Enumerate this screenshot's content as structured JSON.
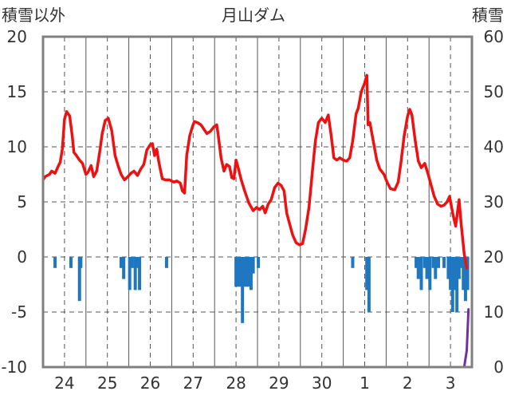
{
  "chart_data": {
    "type": "line",
    "title": "月山ダム",
    "y_left_label": "積雪以外",
    "y_right_label": "積雪",
    "y_left_ticks": [
      "20",
      "15",
      "10",
      "5",
      "0",
      "-5",
      "-10"
    ],
    "y_right_ticks": [
      "60",
      "50",
      "40",
      "30",
      "20",
      "10",
      "0"
    ],
    "y_left_lim": [
      -10,
      20
    ],
    "y_right_lim": [
      0,
      60
    ],
    "x_ticks": [
      {
        "day": 0,
        "label": "24"
      },
      {
        "day": 1,
        "label": "25"
      },
      {
        "day": 2,
        "label": "26"
      },
      {
        "day": 3,
        "label": "27"
      },
      {
        "day": 4,
        "label": "28"
      },
      {
        "day": 5,
        "label": "29"
      },
      {
        "day": 6,
        "label": "30"
      },
      {
        "day": 7,
        "label": "1"
      },
      {
        "day": 8,
        "label": "2"
      },
      {
        "day": 9,
        "label": "3"
      }
    ],
    "x_lim": [
      -0.5,
      9.5
    ],
    "grid": true,
    "colors": {
      "temperature": "#ee1111",
      "precipitation": "#1f77c0",
      "snow": "#7030a0",
      "frame": "#808080",
      "grid": "#555555"
    },
    "series": [
      {
        "type": "line",
        "axis": "left",
        "color": "#ee1111",
        "points": [
          [
            -0.5,
            7.0
          ],
          [
            -0.45,
            7.3
          ],
          [
            -0.35,
            7.5
          ],
          [
            -0.3,
            7.8
          ],
          [
            -0.22,
            7.6
          ],
          [
            -0.15,
            8.2
          ],
          [
            -0.1,
            8.6
          ],
          [
            -0.05,
            9.8
          ],
          [
            0.0,
            12.5
          ],
          [
            0.05,
            13.2
          ],
          [
            0.12,
            12.8
          ],
          [
            0.18,
            11.0
          ],
          [
            0.22,
            9.5
          ],
          [
            0.28,
            9.2
          ],
          [
            0.35,
            8.8
          ],
          [
            0.42,
            8.5
          ],
          [
            0.5,
            7.5
          ],
          [
            0.55,
            7.7
          ],
          [
            0.62,
            8.3
          ],
          [
            0.68,
            7.3
          ],
          [
            0.75,
            7.8
          ],
          [
            0.82,
            9.5
          ],
          [
            0.88,
            11.2
          ],
          [
            0.95,
            12.4
          ],
          [
            1.02,
            12.6
          ],
          [
            1.1,
            11.5
          ],
          [
            1.18,
            9.2
          ],
          [
            1.25,
            8.3
          ],
          [
            1.32,
            7.5
          ],
          [
            1.4,
            7.0
          ],
          [
            1.48,
            7.3
          ],
          [
            1.55,
            7.6
          ],
          [
            1.62,
            7.8
          ],
          [
            1.7,
            7.4
          ],
          [
            1.78,
            8.0
          ],
          [
            1.85,
            8.4
          ],
          [
            1.92,
            9.7
          ],
          [
            2.0,
            10.2
          ],
          [
            2.05,
            10.3
          ],
          [
            2.1,
            9.2
          ],
          [
            2.15,
            9.8
          ],
          [
            2.2,
            8.6
          ],
          [
            2.28,
            7.1
          ],
          [
            2.35,
            7.0
          ],
          [
            2.45,
            7.0
          ],
          [
            2.55,
            6.8
          ],
          [
            2.62,
            6.9
          ],
          [
            2.7,
            6.7
          ],
          [
            2.75,
            6.0
          ],
          [
            2.8,
            5.8
          ],
          [
            2.85,
            9.2
          ],
          [
            2.92,
            11.0
          ],
          [
            2.98,
            11.8
          ],
          [
            3.03,
            12.3
          ],
          [
            3.1,
            12.2
          ],
          [
            3.18,
            12.0
          ],
          [
            3.25,
            11.6
          ],
          [
            3.32,
            11.2
          ],
          [
            3.4,
            11.4
          ],
          [
            3.48,
            11.8
          ],
          [
            3.55,
            12.0
          ],
          [
            3.58,
            11.2
          ],
          [
            3.65,
            9.0
          ],
          [
            3.72,
            7.8
          ],
          [
            3.78,
            8.4
          ],
          [
            3.85,
            8.2
          ],
          [
            3.9,
            7.2
          ],
          [
            3.95,
            7.1
          ],
          [
            4.0,
            8.8
          ],
          [
            4.05,
            8.1
          ],
          [
            4.12,
            7.0
          ],
          [
            4.2,
            6.0
          ],
          [
            4.3,
            4.9
          ],
          [
            4.4,
            4.2
          ],
          [
            4.48,
            4.5
          ],
          [
            4.55,
            4.3
          ],
          [
            4.62,
            4.6
          ],
          [
            4.68,
            4.0
          ],
          [
            4.75,
            4.8
          ],
          [
            4.82,
            5.2
          ],
          [
            4.9,
            6.3
          ],
          [
            4.98,
            6.7
          ],
          [
            5.05,
            6.5
          ],
          [
            5.12,
            6.0
          ],
          [
            5.18,
            4.0
          ],
          [
            5.25,
            3.0
          ],
          [
            5.32,
            2.0
          ],
          [
            5.4,
            1.3
          ],
          [
            5.48,
            1.1
          ],
          [
            5.55,
            1.2
          ],
          [
            5.62,
            2.5
          ],
          [
            5.7,
            4.5
          ],
          [
            5.78,
            7.8
          ],
          [
            5.85,
            10.5
          ],
          [
            5.92,
            12.2
          ],
          [
            6.0,
            12.6
          ],
          [
            6.08,
            12.2
          ],
          [
            6.15,
            12.9
          ],
          [
            6.22,
            11.0
          ],
          [
            6.28,
            9.0
          ],
          [
            6.35,
            8.8
          ],
          [
            6.42,
            9.0
          ],
          [
            6.5,
            8.8
          ],
          [
            6.58,
            8.7
          ],
          [
            6.65,
            9.0
          ],
          [
            6.72,
            10.5
          ],
          [
            6.8,
            13.0
          ],
          [
            6.85,
            13.5
          ],
          [
            6.92,
            15.0
          ],
          [
            7.0,
            15.8
          ],
          [
            7.05,
            16.5
          ],
          [
            7.08,
            12.0
          ],
          [
            7.12,
            12.2
          ],
          [
            7.2,
            10.5
          ],
          [
            7.28,
            8.8
          ],
          [
            7.35,
            8.0
          ],
          [
            7.45,
            7.5
          ],
          [
            7.52,
            6.8
          ],
          [
            7.6,
            6.2
          ],
          [
            7.7,
            6.1
          ],
          [
            7.78,
            6.8
          ],
          [
            7.85,
            8.7
          ],
          [
            7.92,
            11.0
          ],
          [
            8.0,
            12.8
          ],
          [
            8.05,
            13.4
          ],
          [
            8.1,
            12.9
          ],
          [
            8.18,
            10.5
          ],
          [
            8.25,
            8.7
          ],
          [
            8.32,
            8.1
          ],
          [
            8.4,
            8.5
          ],
          [
            8.48,
            7.5
          ],
          [
            8.55,
            6.5
          ],
          [
            8.62,
            5.5
          ],
          [
            8.7,
            4.8
          ],
          [
            8.78,
            4.6
          ],
          [
            8.85,
            4.7
          ],
          [
            8.92,
            5.0
          ],
          [
            8.98,
            5.5
          ],
          [
            9.05,
            4.0
          ],
          [
            9.12,
            2.8
          ],
          [
            9.2,
            5.2
          ],
          [
            9.25,
            3.0
          ],
          [
            9.32,
            0.3
          ],
          [
            9.38,
            -1.0
          ]
        ]
      },
      {
        "type": "bar",
        "axis": "left",
        "color": "#1f77c0",
        "bars": [
          [
            -0.22,
            -1.0
          ],
          [
            0.15,
            -1.0
          ],
          [
            0.35,
            -4.0
          ],
          [
            0.38,
            -1.0
          ],
          [
            1.32,
            -1.0
          ],
          [
            1.38,
            -2.0
          ],
          [
            1.52,
            -3.0
          ],
          [
            1.58,
            -1.0
          ],
          [
            1.65,
            -3.0
          ],
          [
            1.7,
            -1.0
          ],
          [
            1.75,
            -3.0
          ],
          [
            2.38,
            -1.0
          ],
          [
            4.0,
            -2.7
          ],
          [
            4.05,
            -2.7
          ],
          [
            4.1,
            -2.7
          ],
          [
            4.15,
            -6.0
          ],
          [
            4.2,
            -2.7
          ],
          [
            4.25,
            -2.7
          ],
          [
            4.3,
            -2.7
          ],
          [
            4.35,
            -3.0
          ],
          [
            4.4,
            -1.5
          ],
          [
            4.52,
            -1.0
          ],
          [
            6.72,
            -1.0
          ],
          [
            7.05,
            -3.0
          ],
          [
            7.1,
            -5.0
          ],
          [
            8.2,
            -1.0
          ],
          [
            8.25,
            -2.0
          ],
          [
            8.32,
            -3.0
          ],
          [
            8.4,
            -1.0
          ],
          [
            8.45,
            -2.0
          ],
          [
            8.52,
            -3.0
          ],
          [
            8.6,
            -1.0
          ],
          [
            8.65,
            -2.0
          ],
          [
            8.72,
            -1.0
          ],
          [
            8.85,
            -1.0
          ],
          [
            8.95,
            -2.0
          ],
          [
            9.0,
            -3.0
          ],
          [
            9.05,
            -5.0
          ],
          [
            9.1,
            -3.0
          ],
          [
            9.15,
            -5.0
          ],
          [
            9.2,
            -2.0
          ],
          [
            9.25,
            -1.0
          ],
          [
            9.3,
            -3.0
          ],
          [
            9.35,
            -4.0
          ],
          [
            9.4,
            -3.0
          ]
        ]
      },
      {
        "type": "line",
        "axis": "right",
        "color": "#7030a0",
        "points": [
          [
            -0.5,
            0
          ],
          [
            9.15,
            0
          ],
          [
            9.32,
            0
          ],
          [
            9.38,
            3.0
          ],
          [
            9.42,
            10.5
          ]
        ]
      }
    ]
  }
}
